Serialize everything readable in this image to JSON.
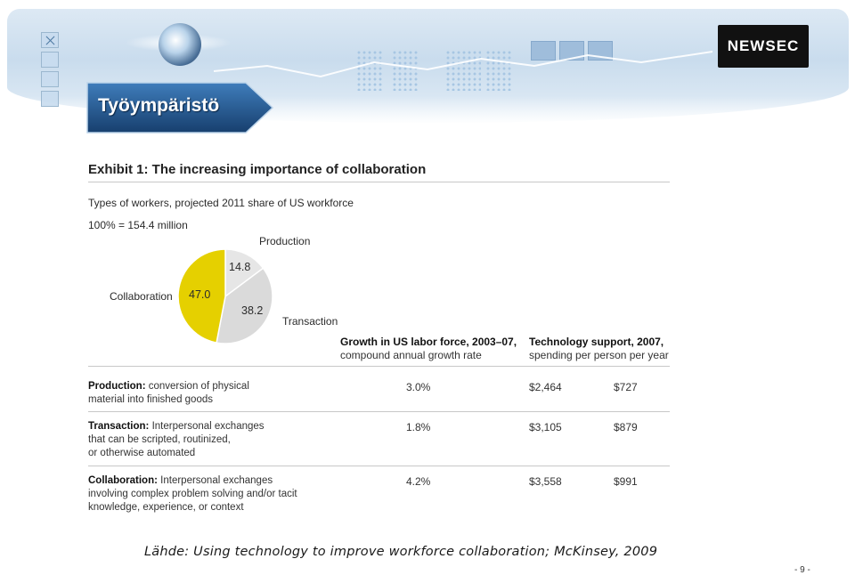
{
  "header": {
    "section_title": "Työympäristö",
    "logo_text": "NEWSEC"
  },
  "exhibit": {
    "title": "Exhibit 1: The increasing importance of collaboration",
    "subtitle": "Types of workers, projected 2011 share of US workforce",
    "total": "100% = 154.4 million"
  },
  "chart_data": [
    {
      "type": "pie",
      "title": "Types of workers, projected 2011 share of US workforce",
      "total_label": "100% = 154.4 million",
      "slices": [
        {
          "label": "Collaboration",
          "value": 47.0,
          "value_label": "47.0",
          "color": "#e5d000"
        },
        {
          "label": "Production",
          "value": 14.8,
          "value_label": "14.8",
          "color": "#e6e6e6"
        },
        {
          "label": "Transaction",
          "value": 38.2,
          "value_label": "38.2",
          "color": "#dadada"
        }
      ]
    },
    {
      "type": "table",
      "columns": [
        {
          "title": "Growth in US labor force, 2003–07,",
          "subtitle": "compound annual growth rate"
        },
        {
          "title": "Technology support, 2007,",
          "subtitle": "spending per person per year"
        }
      ],
      "rows": [
        {
          "name": "Production:",
          "description": [
            "conversion of physical",
            "material into finished goods"
          ],
          "growth": "3.0%",
          "tech_support_a": "$2,464",
          "tech_support_b": "$727"
        },
        {
          "name": "Transaction:",
          "description": [
            "Interpersonal exchanges",
            "that can be scripted, routinized,",
            "or otherwise automated"
          ],
          "growth": "1.8%",
          "tech_support_a": "$3,105",
          "tech_support_b": "$879"
        },
        {
          "name": "Collaboration:",
          "description": [
            "Interpersonal exchanges",
            "involving complex problem solving and/or tacit",
            "knowledge, experience, or context"
          ],
          "growth": "4.2%",
          "tech_support_a": "$3,558",
          "tech_support_b": "$991"
        }
      ]
    }
  ],
  "footer": {
    "source": "Lähde: Using technology to improve workforce collaboration; McKinsey, 2009",
    "page": "- 9 -"
  },
  "colors": {
    "banner_blue": "#1f5a96",
    "pie_yellow": "#e5d000",
    "pie_grey": "#dadada"
  }
}
